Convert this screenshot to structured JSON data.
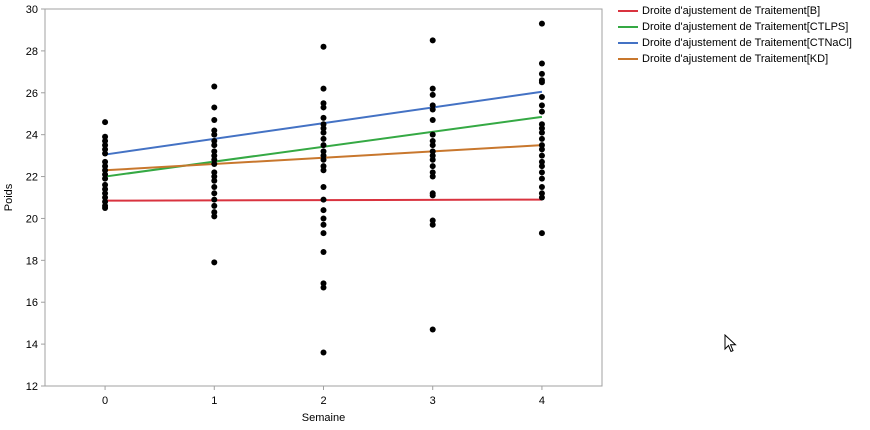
{
  "chart_data": {
    "type": "scatter",
    "xlabel": "Semaine",
    "ylabel": "Poids",
    "xlim": [
      -0.55,
      4.55
    ],
    "ylim": [
      12,
      30
    ],
    "x_ticks": [
      0,
      1,
      2,
      3,
      4
    ],
    "y_ticks": [
      12,
      14,
      16,
      18,
      20,
      22,
      24,
      26,
      28,
      30
    ],
    "grid": false,
    "legend_position": "top-right outside plot",
    "points": {
      "0": [
        24.6,
        23.9,
        23.7,
        23.5,
        23.3,
        23.1,
        22.7,
        22.5,
        22.3,
        22.1,
        21.9,
        21.6,
        21.4,
        21.2,
        21.0,
        20.8,
        20.6,
        20.5
      ],
      "1": [
        26.3,
        25.3,
        24.7,
        24.2,
        24.0,
        23.7,
        23.5,
        23.2,
        23.0,
        22.8,
        22.6,
        22.2,
        22.0,
        21.8,
        21.5,
        21.2,
        20.9,
        20.6,
        20.3,
        20.1,
        17.9
      ],
      "2": [
        28.2,
        26.2,
        25.5,
        25.3,
        24.8,
        24.5,
        24.3,
        24.1,
        23.8,
        23.5,
        23.2,
        23.0,
        22.8,
        22.5,
        22.3,
        21.5,
        20.9,
        20.4,
        20.0,
        19.7,
        19.3,
        18.4,
        16.9,
        16.7,
        13.6
      ],
      "3": [
        28.5,
        26.2,
        25.9,
        25.4,
        25.2,
        24.7,
        24.0,
        23.7,
        23.5,
        23.2,
        23.0,
        22.8,
        22.5,
        22.2,
        22.0,
        21.2,
        21.1,
        19.9,
        19.7,
        14.7
      ],
      "4": [
        29.3,
        27.4,
        26.9,
        26.6,
        26.5,
        25.8,
        25.4,
        25.1,
        24.5,
        24.3,
        24.1,
        23.8,
        23.5,
        23.3,
        23.0,
        22.7,
        22.5,
        22.2,
        21.9,
        21.5,
        21.2,
        21.0,
        19.3
      ]
    },
    "series": [
      {
        "name": "Droite d'ajustement de Traitement[B]",
        "color": "#d9333f",
        "x": [
          0,
          4
        ],
        "y": [
          20.85,
          20.9
        ]
      },
      {
        "name": "Droite d'ajustement de Traitement[CTLPS]",
        "color": "#35a944",
        "x": [
          0,
          4
        ],
        "y": [
          22.0,
          24.85
        ]
      },
      {
        "name": "Droite d'ajustement de Traitement[CTNaCl]",
        "color": "#4472c4",
        "x": [
          0,
          4
        ],
        "y": [
          23.05,
          26.05
        ]
      },
      {
        "name": "Droite d'ajustement de Traitement[KD]",
        "color": "#c8772d",
        "x": [
          0,
          4
        ],
        "y": [
          22.3,
          23.5
        ]
      }
    ]
  }
}
